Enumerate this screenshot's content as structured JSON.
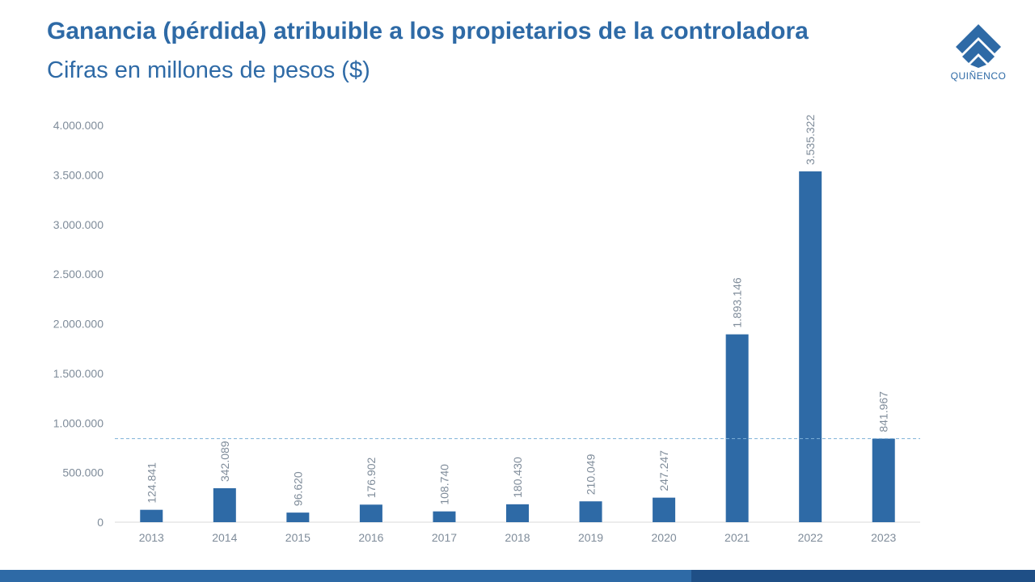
{
  "header": {
    "title": "Ganancia (pérdida) atribuible a los propietarios de la controladora",
    "subtitle": "Cifras en millones de pesos ($)"
  },
  "logo": {
    "text": "QUIÑENCO",
    "icon": "quinenco-logo-icon",
    "color": "#2e6aa6"
  },
  "chart_data": {
    "type": "bar",
    "title": "Ganancia (pérdida) atribuible a los propietarios de la controladora",
    "subtitle": "Cifras en millones de pesos ($)",
    "xlabel": "",
    "ylabel": "",
    "categories": [
      "2013",
      "2014",
      "2015",
      "2016",
      "2017",
      "2018",
      "2019",
      "2020",
      "2021",
      "2022",
      "2023"
    ],
    "values": [
      124841,
      342089,
      96620,
      176902,
      108740,
      180430,
      210049,
      247247,
      1893146,
      3535322,
      841967
    ],
    "data_labels": [
      "124.841",
      "342.089",
      "96.620",
      "176.902",
      "108.740",
      "180.430",
      "210.049",
      "247.247",
      "1.893.146",
      "3.535.322",
      "841.967"
    ],
    "ylim": [
      0,
      4000000
    ],
    "yticks": [
      0,
      500000,
      1000000,
      1500000,
      2000000,
      2500000,
      3000000,
      3500000,
      4000000
    ],
    "ytick_labels": [
      "0",
      "500.000",
      "1.000.000",
      "1.500.000",
      "2.000.000",
      "2.500.000",
      "3.000.000",
      "3.500.000",
      "4.000.000"
    ],
    "reference_line_value": 841967,
    "grid": false,
    "legend": "none",
    "colors": {
      "bar": "#2e6aa6",
      "reference_line": "#7fb0d8",
      "axis_text": "#7f8c9a"
    }
  },
  "colors": {
    "accent": "#2e6aa6",
    "accent_dark": "#1f4f86"
  }
}
